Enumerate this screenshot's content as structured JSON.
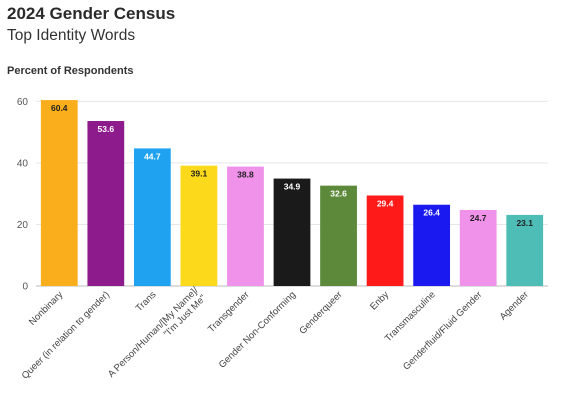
{
  "title": "2024 Gender Census",
  "subtitle": "Top Identity Words",
  "chart_data": {
    "type": "bar",
    "title": "2024 Gender Census",
    "subtitle": "Top Identity Words",
    "ylabel": "Percent of Respondents",
    "xlabel": "",
    "ylim": [
      0,
      64
    ],
    "yticks": [
      0,
      20,
      40,
      60
    ],
    "grid": true,
    "categories": [
      "Nonbinary",
      "Queer (in relation to gender)",
      "Trans",
      "A Person/Human/[My Name]/\"I'm Just Me\"",
      "Transgender",
      "Gender Non-Conforming",
      "Genderqueer",
      "Enby",
      "Transmasculine",
      "Genderfluid/Fluid Gender",
      "Agender"
    ],
    "values": [
      60.4,
      53.6,
      44.7,
      39.1,
      38.8,
      34.9,
      32.6,
      29.4,
      26.4,
      24.7,
      23.1
    ],
    "colors": [
      "#FBAE1B",
      "#8E1B8C",
      "#1FA3F0",
      "#FDD91B",
      "#F091EA",
      "#1A1A1A",
      "#5C8A3A",
      "#FF1A1A",
      "#1A1AF0",
      "#F091EA",
      "#4DBDB5"
    ],
    "label_colors": [
      "#222222",
      "#ffffff",
      "#ffffff",
      "#222222",
      "#222222",
      "#ffffff",
      "#ffffff",
      "#ffffff",
      "#ffffff",
      "#222222",
      "#222222"
    ]
  }
}
